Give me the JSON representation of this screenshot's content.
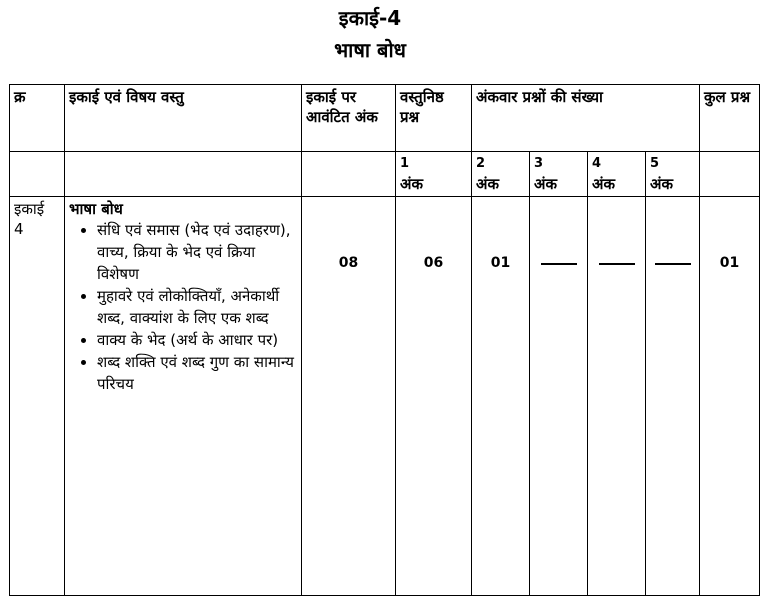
{
  "heading": {
    "unit": "इकाई-4",
    "subject": "भाषा बोध"
  },
  "table": {
    "header": {
      "serial": "क्र",
      "unit_content": "इकाई एवं विषय वस्तु",
      "unit_marks": "इकाई पर आवंटित अंक",
      "objective": "वस्तुनिष्ठ प्रश्न",
      "markwise_count": "अंकवार प्रश्नों की संख्या",
      "total": "कुल प्रश्न"
    },
    "subheader": {
      "m1_num": "1",
      "m1_label": "अंक",
      "m2_num": "2",
      "m2_label": "अंक",
      "m3_num": "3",
      "m3_label": "अंक",
      "m4_num": "4",
      "m4_label": "अंक",
      "m5_num": "5",
      "m5_label": "अंक"
    },
    "row": {
      "serial_line1": "इकाई",
      "serial_line2": "4",
      "content_title": "भाषा बोध",
      "items": [
        "संधि एवं समास (भेद एवं उदाहरण), वाच्य, क्रिया के भेद एवं क्रिया विशेषण",
        "मुहावरे एवं लोकोक्तियाँ, अनेकार्थी शब्द, वाक्यांश के लिए एक शब्द",
        "वाक्य के भेद (अर्थ के आधार पर)",
        "शब्द शक्ति एवं शब्द गुण का सामान्य परिचय"
      ],
      "unit_marks": "08",
      "objective": "06",
      "m1": "01",
      "m2": "",
      "m3": "",
      "m4": "",
      "total": "01"
    }
  }
}
